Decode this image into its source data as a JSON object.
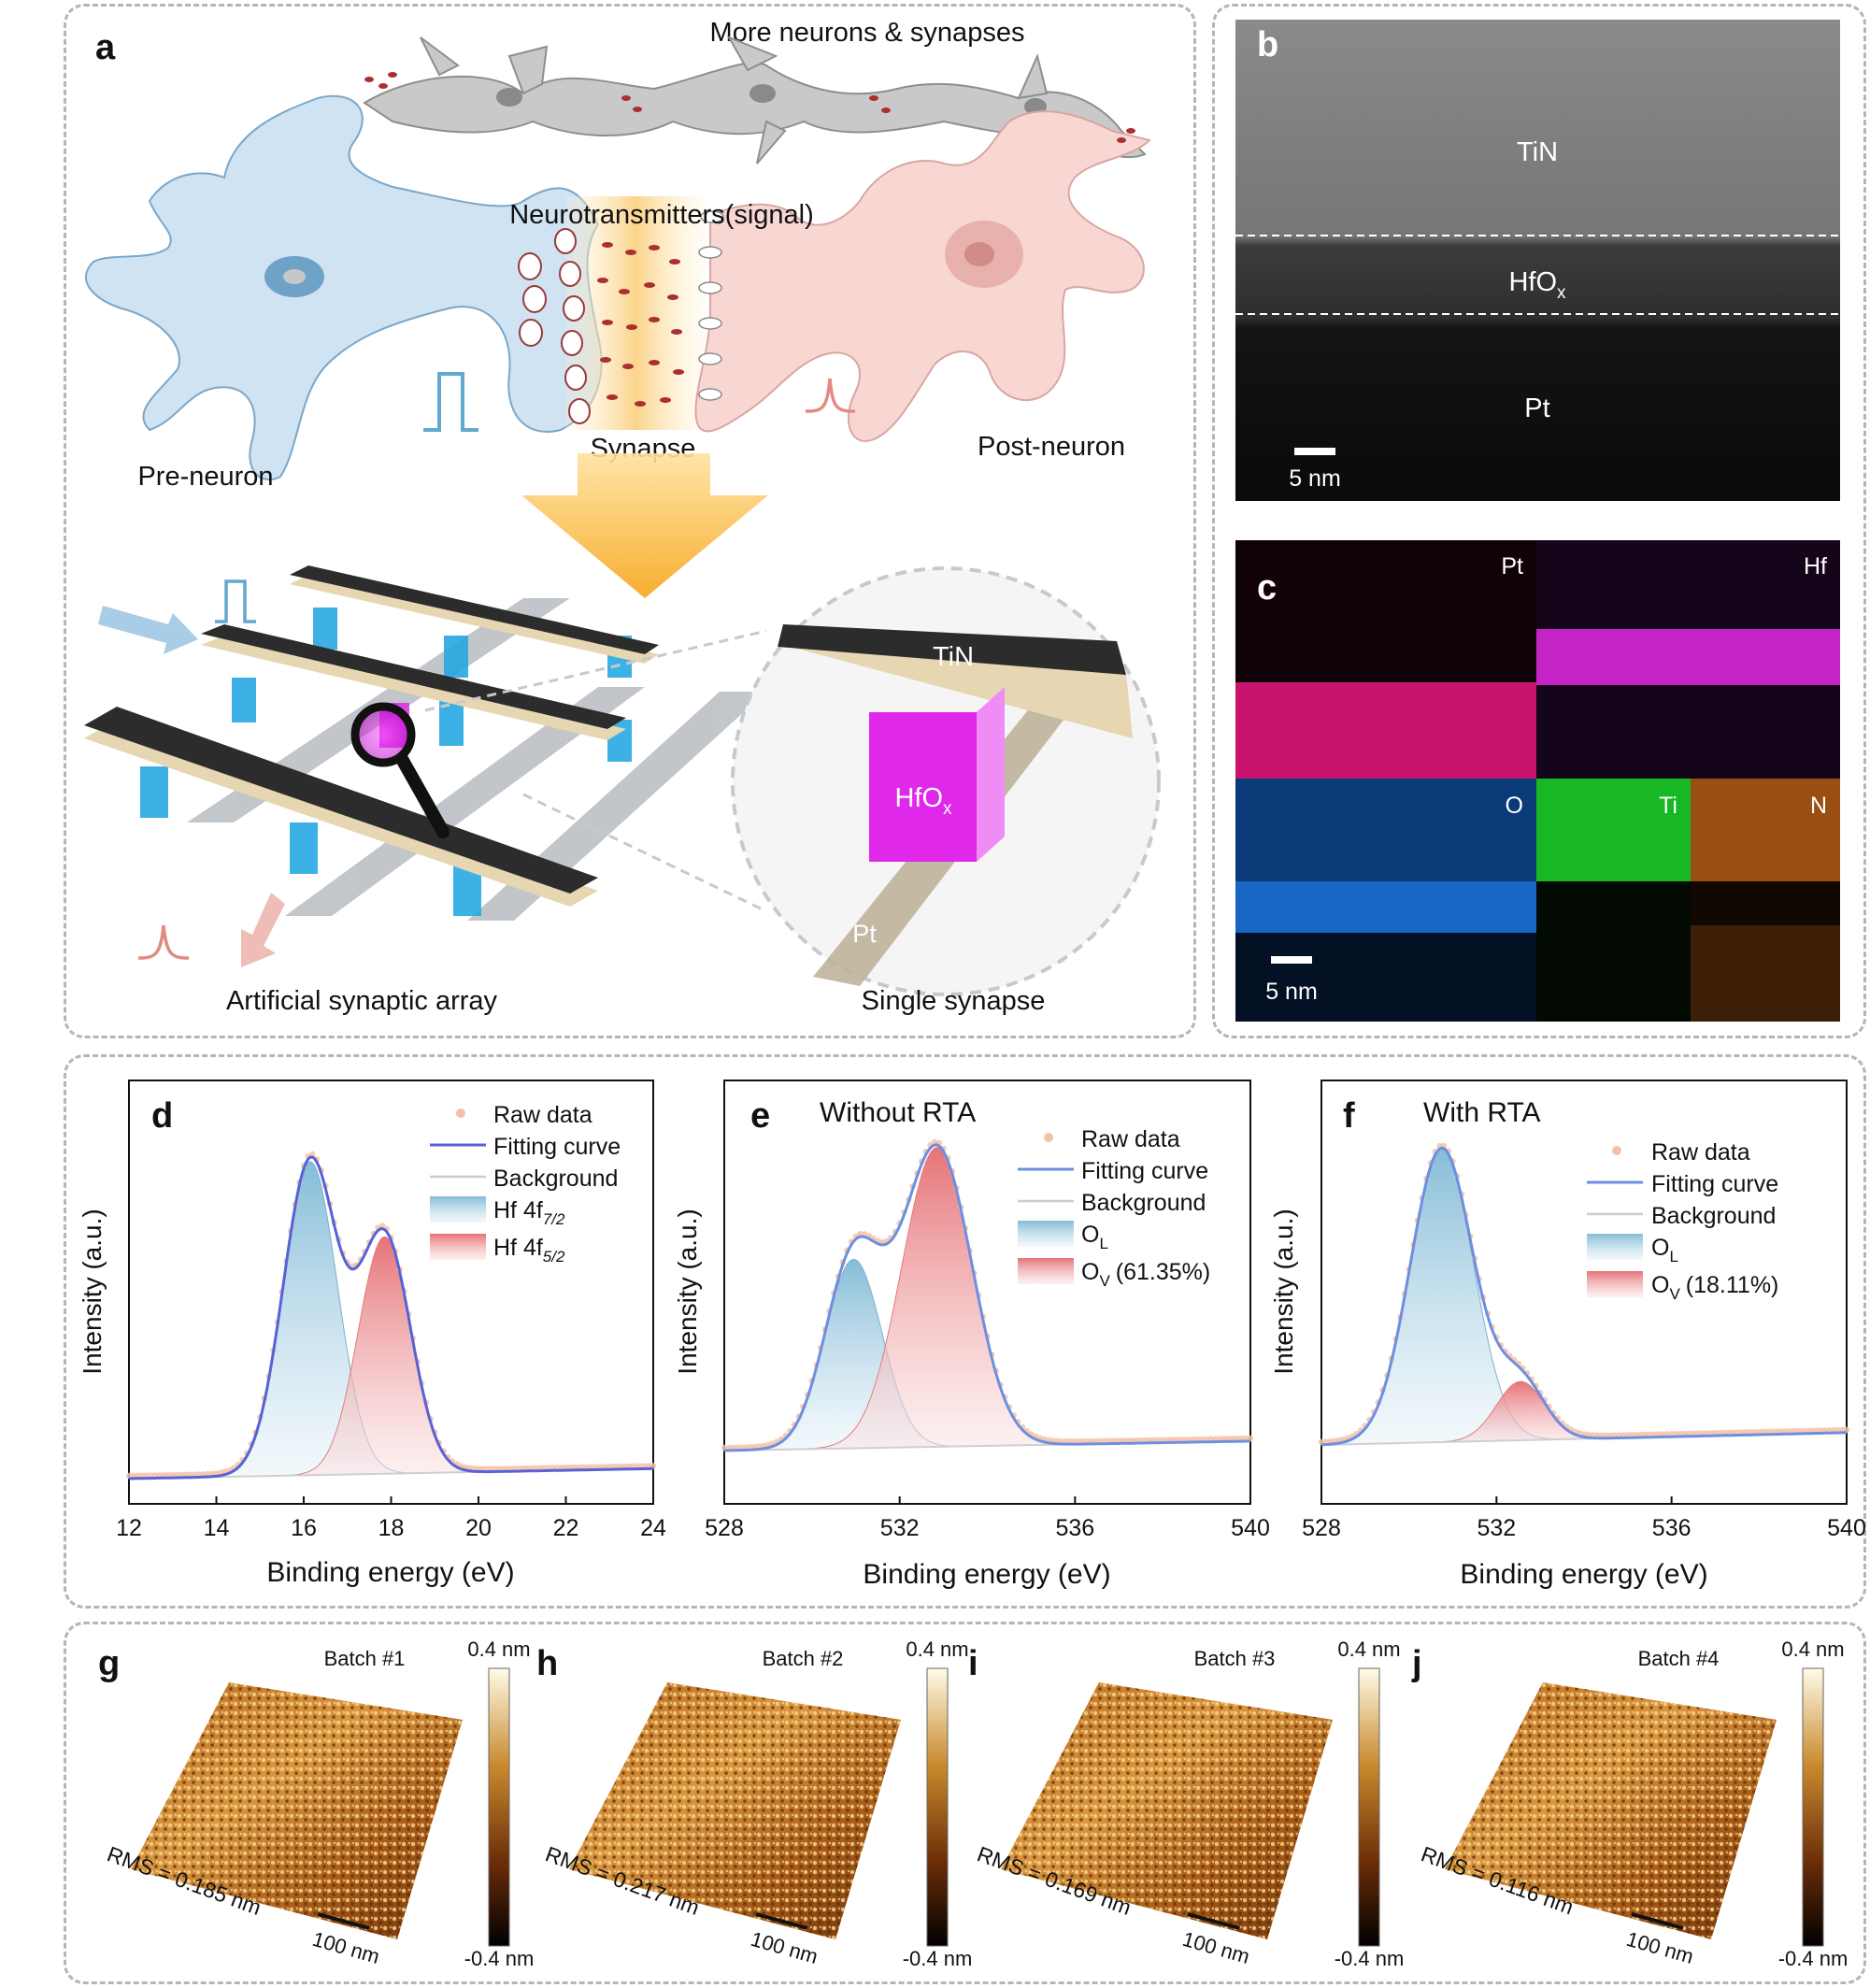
{
  "panel_a": {
    "label": "a",
    "top_title": "More neurons & synapses",
    "neurotransmitters": "Neurotransmitters(signal)",
    "pre_neuron": "Pre-neuron",
    "synapse": "Synapse",
    "post_neuron": "Post-neuron",
    "array_caption": "Artificial synaptic array",
    "single_caption": "Single synapse",
    "zoom_top": "TiN",
    "zoom_mid": "HfO",
    "zoom_mid_sub": "x",
    "zoom_bottom": "Pt"
  },
  "panel_b": {
    "label": "b",
    "layer_top": "TiN",
    "layer_mid": "HfO",
    "layer_mid_sub": "x",
    "layer_bottom": "Pt",
    "scale": "5 nm"
  },
  "panel_c": {
    "label": "c",
    "maps": [
      "Pt",
      "Hf",
      "O",
      "Ti",
      "N"
    ],
    "scale": "5 nm"
  },
  "xps_common": {
    "ylabel": "Intensity (a.u.)",
    "xlabel": "Binding energy (eV)",
    "legend_raw": "Raw data",
    "legend_fit": "Fitting curve",
    "legend_bg": "Background"
  },
  "panel_d": {
    "label": "d",
    "legend_a": "Hf 4f",
    "legend_a_sub": "7/2",
    "legend_b": "Hf 4f",
    "legend_b_sub": "5/2"
  },
  "panel_e": {
    "label": "e",
    "title": "Without RTA",
    "legend_a": "O",
    "legend_a_sub": "L",
    "legend_b": "O",
    "legend_b_sub": "V",
    "legend_b_pct": "(61.35%)"
  },
  "panel_f": {
    "label": "f",
    "title": "With RTA",
    "legend_a": "O",
    "legend_a_sub": "L",
    "legend_b": "O",
    "legend_b_sub": "V",
    "legend_b_pct": "(18.11%)"
  },
  "afm": [
    {
      "label": "g",
      "batch": "Batch #1",
      "rms": "RMS = 0.185 nm"
    },
    {
      "label": "h",
      "batch": "Batch #2",
      "rms": "RMS = 0.217 nm"
    },
    {
      "label": "i",
      "batch": "Batch #3",
      "rms": "RMS = 0.169 nm"
    },
    {
      "label": "j",
      "batch": "Batch #4",
      "rms": "RMS = 0.116 nm"
    }
  ],
  "afm_common": {
    "cbar_top": "0.4 nm",
    "cbar_bottom": "-0.4 nm",
    "scale": "100 nm"
  },
  "chart_data": [
    {
      "type": "area",
      "panel": "d",
      "xlabel": "Binding energy (eV)",
      "ylabel": "Intensity (a.u.)",
      "xlim": [
        12,
        24
      ],
      "xticks": [
        12,
        14,
        16,
        18,
        20,
        22,
        24
      ],
      "series": [
        {
          "name": "Hf 4f7/2",
          "center": 16.15,
          "height": 0.94,
          "width": 0.62,
          "color": "#8fc4dc"
        },
        {
          "name": "Hf 4f5/2",
          "center": 17.85,
          "height": 0.71,
          "width": 0.6,
          "color": "#e8868a"
        }
      ],
      "background": [
        [
          12,
          0.0
        ],
        [
          24,
          0.03
        ]
      ]
    },
    {
      "type": "area",
      "panel": "e",
      "xlabel": "Binding energy (eV)",
      "ylabel": "Intensity (a.u.)",
      "xlim": [
        528,
        540
      ],
      "xticks": [
        528,
        532,
        536,
        540
      ],
      "series": [
        {
          "name": "OL",
          "center": 530.95,
          "height": 0.6,
          "width": 0.65,
          "color": "#8fc4dc"
        },
        {
          "name": "OV (61.35%)",
          "center": 532.85,
          "height": 0.95,
          "width": 0.8,
          "color": "#e8868a"
        }
      ],
      "background": [
        [
          528,
          0.0
        ],
        [
          540,
          0.03
        ]
      ]
    },
    {
      "type": "area",
      "panel": "f",
      "xlabel": "Binding energy (eV)",
      "ylabel": "Intensity (a.u.)",
      "xlim": [
        528,
        540
      ],
      "xticks": [
        528,
        532,
        536,
        540
      ],
      "series": [
        {
          "name": "OL",
          "center": 530.75,
          "height": 0.95,
          "width": 0.72,
          "color": "#8fc4dc"
        },
        {
          "name": "OV (18.11%)",
          "center": 532.55,
          "height": 0.19,
          "width": 0.55,
          "color": "#e8868a"
        }
      ],
      "background": [
        [
          528,
          0.0
        ],
        [
          540,
          0.04
        ]
      ]
    }
  ]
}
